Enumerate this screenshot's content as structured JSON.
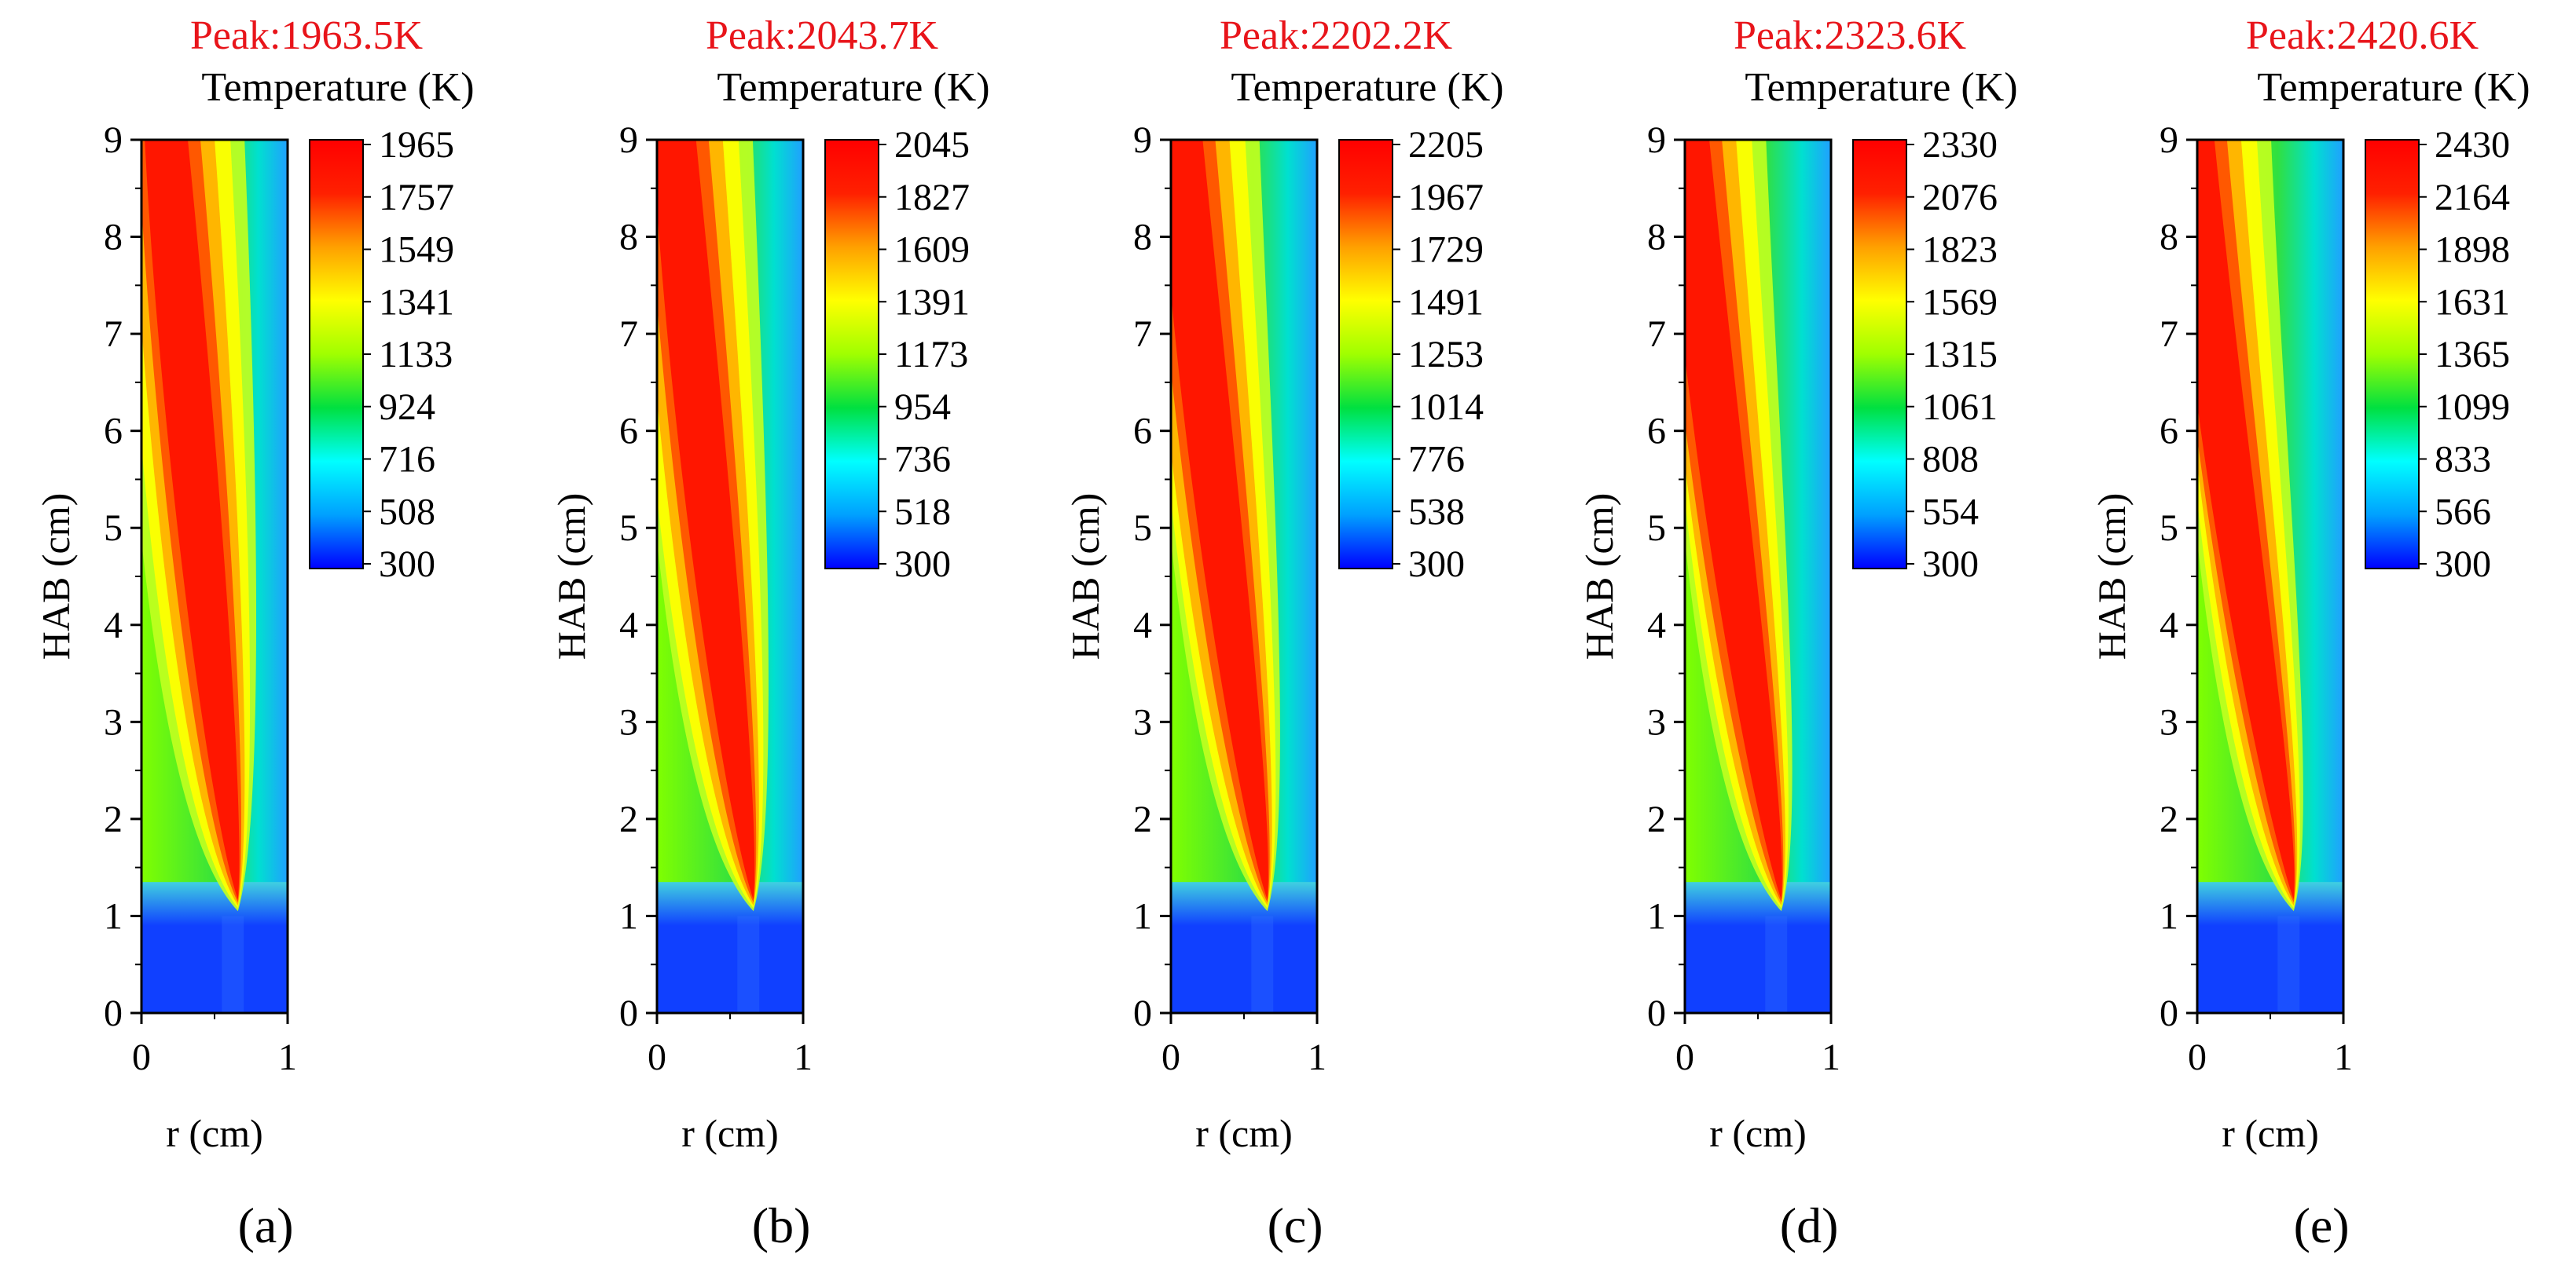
{
  "chart_data": [
    {
      "type": "heatmap",
      "panel_label": "(a)",
      "peak_label": "Peak:1963.5K",
      "colorbar_title": "Temperature (K)",
      "colorbar_ticks": [
        "1965",
        "1757",
        "1549",
        "1341",
        "1133",
        "924",
        "716",
        "508",
        "300"
      ],
      "zlim": [
        300,
        1965
      ],
      "xlabel": "r (cm)",
      "ylabel": "HAB (cm)",
      "xlim": [
        0,
        1
      ],
      "ylim": [
        0,
        9
      ],
      "xticks": [
        "0",
        "1"
      ],
      "yticks": [
        "0",
        "1",
        "2",
        "3",
        "4",
        "5",
        "6",
        "7",
        "8",
        "9"
      ]
    },
    {
      "type": "heatmap",
      "panel_label": "(b)",
      "peak_label": "Peak:2043.7K",
      "colorbar_title": "Temperature (K)",
      "colorbar_ticks": [
        "2045",
        "1827",
        "1609",
        "1391",
        "1173",
        "954",
        "736",
        "518",
        "300"
      ],
      "zlim": [
        300,
        2045
      ],
      "xlabel": "r (cm)",
      "ylabel": "HAB (cm)",
      "xlim": [
        0,
        1
      ],
      "ylim": [
        0,
        9
      ],
      "xticks": [
        "0",
        "1"
      ],
      "yticks": [
        "0",
        "1",
        "2",
        "3",
        "4",
        "5",
        "6",
        "7",
        "8",
        "9"
      ]
    },
    {
      "type": "heatmap",
      "panel_label": "(c)",
      "peak_label": "Peak:2202.2K",
      "colorbar_title": "Temperature (K)",
      "colorbar_ticks": [
        "2205",
        "1967",
        "1729",
        "1491",
        "1253",
        "1014",
        "776",
        "538",
        "300"
      ],
      "zlim": [
        300,
        2205
      ],
      "xlabel": "r (cm)",
      "ylabel": "HAB (cm)",
      "xlim": [
        0,
        1
      ],
      "ylim": [
        0,
        9
      ],
      "xticks": [
        "0",
        "1"
      ],
      "yticks": [
        "0",
        "1",
        "2",
        "3",
        "4",
        "5",
        "6",
        "7",
        "8",
        "9"
      ]
    },
    {
      "type": "heatmap",
      "panel_label": "(d)",
      "peak_label": "Peak:2323.6K",
      "colorbar_title": "Temperature (K)",
      "colorbar_ticks": [
        "2330",
        "2076",
        "1823",
        "1569",
        "1315",
        "1061",
        "808",
        "554",
        "300"
      ],
      "zlim": [
        300,
        2330
      ],
      "xlabel": "r (cm)",
      "ylabel": "HAB (cm)",
      "xlim": [
        0,
        1
      ],
      "ylim": [
        0,
        9
      ],
      "xticks": [
        "0",
        "1"
      ],
      "yticks": [
        "0",
        "1",
        "2",
        "3",
        "4",
        "5",
        "6",
        "7",
        "8",
        "9"
      ]
    },
    {
      "type": "heatmap",
      "panel_label": "(e)",
      "peak_label": "Peak:2420.6K",
      "colorbar_title": "Temperature (K)",
      "colorbar_ticks": [
        "2430",
        "2164",
        "1898",
        "1631",
        "1365",
        "1099",
        "833",
        "566",
        "300"
      ],
      "zlim": [
        300,
        2430
      ],
      "xlabel": "r (cm)",
      "ylabel": "HAB (cm)",
      "xlim": [
        0,
        1
      ],
      "ylim": [
        0,
        9
      ],
      "xticks": [
        "0",
        "1"
      ],
      "yticks": [
        "0",
        "1",
        "2",
        "3",
        "4",
        "5",
        "6",
        "7",
        "8",
        "9"
      ]
    }
  ],
  "colors": {
    "peak_label": "#e8141a",
    "colormap": [
      "#0000ff",
      "#00a0ff",
      "#00ffff",
      "#00e040",
      "#a0ff00",
      "#ffff00",
      "#ffa000",
      "#ff2000",
      "#ff0000"
    ]
  }
}
